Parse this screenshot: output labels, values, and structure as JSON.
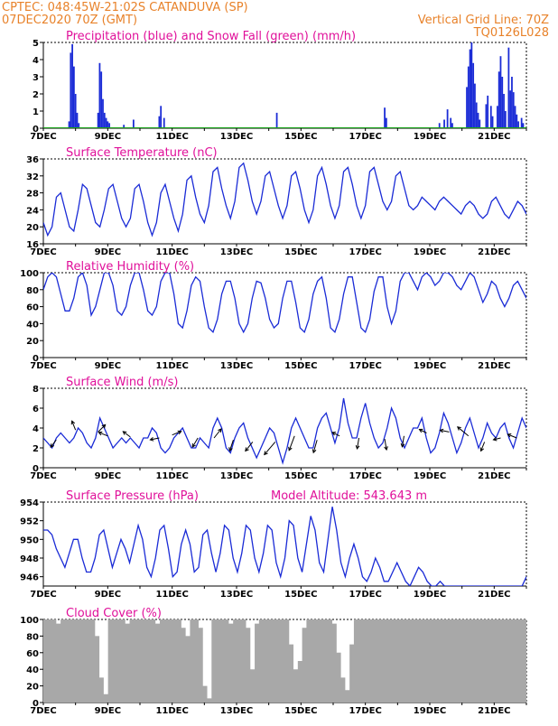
{
  "header": {
    "station": "CPTEC:   048:45W-21:02S   CATANDUVA (SP)",
    "init": "07DEC2020 70Z (GMT)",
    "grid_note": "Vertical Grid Line: 70Z",
    "grid_code": "TQ0126L028"
  },
  "colors": {
    "line": "#1a2bd6",
    "snow": "#17a317",
    "cloud": "#a8a8a8",
    "title": "#e0109a",
    "header": "#e8822a"
  },
  "chart_data": [
    {
      "type": "bar",
      "title": "Precipitation (blue) and Snow Fall (green) (mm/h)",
      "x_labels": [
        "7DEC",
        "9DEC",
        "11DEC",
        "13DEC",
        "15DEC",
        "17DEC",
        "19DEC",
        "21DEC"
      ],
      "x_range": [
        0,
        15
      ],
      "ylim": [
        0,
        5
      ],
      "yticks": [
        0,
        1,
        2,
        3,
        4,
        5
      ],
      "series": [
        {
          "name": "Precipitation",
          "points": [
            [
              0.8,
              0.4
            ],
            [
              0.85,
              4.4
            ],
            [
              0.9,
              4.9
            ],
            [
              0.95,
              3.6
            ],
            [
              1.0,
              2.0
            ],
            [
              1.05,
              0.9
            ],
            [
              1.1,
              0.3
            ],
            [
              1.7,
              0.9
            ],
            [
              1.75,
              3.8
            ],
            [
              1.8,
              3.3
            ],
            [
              1.85,
              1.7
            ],
            [
              1.9,
              0.9
            ],
            [
              1.95,
              0.6
            ],
            [
              2.0,
              0.4
            ],
            [
              2.05,
              0.3
            ],
            [
              2.5,
              0.2
            ],
            [
              2.8,
              0.5
            ],
            [
              3.6,
              0.7
            ],
            [
              3.65,
              1.3
            ],
            [
              3.75,
              0.6
            ],
            [
              7.25,
              0.9
            ],
            [
              10.6,
              1.2
            ],
            [
              10.65,
              0.6
            ],
            [
              12.3,
              0.3
            ],
            [
              12.45,
              0.5
            ],
            [
              12.55,
              1.1
            ],
            [
              12.65,
              0.6
            ],
            [
              12.7,
              0.3
            ],
            [
              13.15,
              2.4
            ],
            [
              13.2,
              3.6
            ],
            [
              13.25,
              4.6
            ],
            [
              13.3,
              5.0
            ],
            [
              13.35,
              3.8
            ],
            [
              13.4,
              2.6
            ],
            [
              13.45,
              1.5
            ],
            [
              13.5,
              0.9
            ],
            [
              13.55,
              0.5
            ],
            [
              13.75,
              1.4
            ],
            [
              13.8,
              1.9
            ],
            [
              13.9,
              1.3
            ],
            [
              13.95,
              0.7
            ],
            [
              14.1,
              1.3
            ],
            [
              14.15,
              3.3
            ],
            [
              14.2,
              4.2
            ],
            [
              14.25,
              3.0
            ],
            [
              14.3,
              2.0
            ],
            [
              14.35,
              1.0
            ],
            [
              14.45,
              4.7
            ],
            [
              14.5,
              2.2
            ],
            [
              14.55,
              3.0
            ],
            [
              14.6,
              2.1
            ],
            [
              14.65,
              1.3
            ],
            [
              14.7,
              0.8
            ],
            [
              14.75,
              0.4
            ],
            [
              14.85,
              0.6
            ],
            [
              14.9,
              0.3
            ]
          ]
        },
        {
          "name": "Snow Fall",
          "points": [
            [
              0,
              0
            ],
            [
              15,
              0
            ]
          ]
        }
      ]
    },
    {
      "type": "line",
      "title": "Surface Temperature (nC)",
      "x_labels": [
        "7DEC",
        "9DEC",
        "11DEC",
        "13DEC",
        "15DEC",
        "17DEC",
        "19DEC",
        "21DEC"
      ],
      "x_range": [
        0,
        15
      ],
      "ylim": [
        16,
        36
      ],
      "yticks": [
        16,
        20,
        24,
        28,
        32,
        36
      ],
      "values": [
        21,
        18,
        20,
        27,
        28,
        24,
        20,
        19,
        24,
        30,
        29,
        25,
        21,
        20,
        24,
        29,
        30,
        26,
        22,
        20,
        22,
        29,
        30,
        26,
        21,
        18,
        21,
        28,
        30,
        26,
        22,
        19,
        23,
        31,
        32,
        27,
        23,
        21,
        25,
        33,
        34,
        29,
        25,
        22,
        26,
        34,
        35,
        31,
        26,
        23,
        26,
        32,
        33,
        29,
        25,
        22,
        25,
        32,
        33,
        29,
        24,
        21,
        24,
        32,
        34,
        30,
        25,
        22,
        25,
        33,
        34,
        30,
        25,
        22,
        25,
        33,
        34,
        30,
        26,
        24,
        26,
        32,
        33,
        29,
        25,
        24,
        25,
        27,
        26,
        25,
        24,
        26,
        27,
        26,
        25,
        24,
        23,
        25,
        26,
        25,
        23,
        22,
        23,
        26,
        27,
        25,
        23,
        22,
        24,
        26,
        25,
        23
      ]
    },
    {
      "type": "line",
      "title": "Relative Humidity (%)",
      "x_labels": [
        "7DEC",
        "9DEC",
        "11DEC",
        "13DEC",
        "15DEC",
        "17DEC",
        "19DEC",
        "21DEC"
      ],
      "x_range": [
        0,
        15
      ],
      "ylim": [
        0,
        100
      ],
      "yticks": [
        0,
        20,
        40,
        60,
        80,
        100
      ],
      "values": [
        80,
        95,
        100,
        95,
        75,
        55,
        55,
        70,
        95,
        100,
        85,
        50,
        60,
        80,
        100,
        100,
        85,
        55,
        50,
        60,
        85,
        100,
        100,
        80,
        55,
        50,
        60,
        90,
        100,
        100,
        75,
        40,
        35,
        55,
        85,
        95,
        90,
        60,
        35,
        30,
        45,
        75,
        90,
        90,
        70,
        40,
        30,
        40,
        70,
        90,
        88,
        70,
        45,
        35,
        40,
        70,
        90,
        90,
        65,
        35,
        30,
        45,
        75,
        90,
        95,
        70,
        35,
        30,
        45,
        75,
        95,
        95,
        65,
        35,
        30,
        45,
        78,
        95,
        95,
        60,
        40,
        55,
        90,
        100,
        100,
        90,
        80,
        95,
        100,
        95,
        85,
        90,
        100,
        100,
        95,
        85,
        80,
        90,
        100,
        95,
        80,
        65,
        75,
        90,
        85,
        70,
        60,
        70,
        85,
        90,
        80,
        70
      ]
    },
    {
      "type": "line",
      "title": "Surface Wind (m/s)",
      "x_labels": [
        "7DEC",
        "9DEC",
        "11DEC",
        "13DEC",
        "15DEC",
        "17DEC",
        "19DEC",
        "21DEC"
      ],
      "x_range": [
        0,
        15
      ],
      "ylim": [
        0,
        8
      ],
      "yticks": [
        0,
        2,
        4,
        6,
        8
      ],
      "values": [
        3,
        2.5,
        2,
        3,
        3.5,
        3,
        2.5,
        3,
        4,
        3.5,
        2.5,
        2,
        3,
        5,
        4,
        3,
        2,
        2.5,
        3,
        2.5,
        3,
        2.5,
        2,
        3,
        3,
        4,
        3.5,
        2,
        1.5,
        2,
        3,
        3.5,
        4,
        3,
        2,
        2,
        3,
        2.5,
        2,
        4,
        5,
        4,
        2,
        1.5,
        3,
        4,
        4.5,
        3,
        2,
        1,
        2,
        3,
        4,
        3.5,
        2,
        0.5,
        2,
        4,
        5,
        4,
        3,
        2,
        2,
        4,
        5,
        5.5,
        4,
        2.5,
        4,
        7,
        4.5,
        3,
        3,
        5,
        6.5,
        4.5,
        3,
        2,
        2.5,
        4,
        6,
        5,
        3,
        2,
        3,
        4,
        4,
        5,
        3,
        1.5,
        2,
        3.5,
        5.5,
        4.5,
        3,
        1.5,
        2.5,
        4,
        5,
        3.5,
        2,
        3,
        4.5,
        3.5,
        3,
        4,
        4.5,
        3,
        2,
        3.5,
        5,
        4
      ]
    },
    {
      "type": "line",
      "title": "Surface Pressure (hPa)",
      "annotation": "Model Altitude: 543.643  m",
      "x_labels": [
        "7DEC",
        "9DEC",
        "11DEC",
        "13DEC",
        "15DEC",
        "17DEC",
        "19DEC",
        "21DEC"
      ],
      "x_range": [
        0,
        15
      ],
      "ylim": [
        945,
        954
      ],
      "yticks": [
        946,
        948,
        950,
        952,
        954
      ],
      "values": [
        951,
        951,
        950.5,
        949,
        948,
        947,
        948.5,
        950,
        950,
        948,
        946.5,
        946.5,
        948,
        950.5,
        951,
        949,
        947,
        948.5,
        950,
        949,
        947.5,
        949.5,
        951.5,
        950,
        947,
        946,
        948,
        951,
        951.5,
        949,
        946,
        946.5,
        949.5,
        951,
        949.5,
        946.5,
        947,
        950.5,
        951,
        948.5,
        946.5,
        948.5,
        951.5,
        951,
        948,
        946.5,
        948.5,
        951.5,
        951,
        948,
        946.5,
        948.5,
        951.5,
        951,
        947.5,
        946,
        948,
        952,
        951.5,
        948,
        946.5,
        949.5,
        952.5,
        951,
        947.5,
        946.5,
        950,
        953.5,
        951,
        947.5,
        946,
        948,
        949.5,
        948,
        946,
        945.5,
        946.5,
        948,
        947,
        945.5,
        945.5,
        946.5,
        947.5,
        946.5,
        945.5,
        945,
        946,
        947,
        946.5,
        945.5,
        945,
        945,
        945.5,
        945,
        945,
        945,
        945,
        945,
        945,
        945,
        945,
        945,
        945,
        945,
        945,
        945,
        945,
        945,
        945,
        945,
        945,
        945,
        946
      ]
    },
    {
      "type": "area",
      "title": "Cloud Cover (%)",
      "x_labels": [
        "7DEC",
        "9DEC",
        "11DEC",
        "13DEC",
        "15DEC",
        "17DEC",
        "19DEC",
        "21DEC"
      ],
      "x_range": [
        0,
        15
      ],
      "ylim": [
        0,
        100
      ],
      "yticks": [
        0,
        20,
        40,
        60,
        80,
        100
      ],
      "values": [
        100,
        100,
        100,
        95,
        100,
        100,
        100,
        100,
        100,
        100,
        100,
        100,
        80,
        30,
        10,
        100,
        100,
        100,
        100,
        95,
        100,
        100,
        100,
        100,
        100,
        100,
        95,
        100,
        100,
        100,
        100,
        100,
        90,
        80,
        100,
        100,
        90,
        20,
        5,
        100,
        100,
        100,
        100,
        95,
        100,
        100,
        100,
        90,
        40,
        95,
        100,
        100,
        100,
        100,
        100,
        100,
        100,
        70,
        40,
        50,
        90,
        100,
        100,
        100,
        100,
        100,
        100,
        95,
        60,
        30,
        15,
        70,
        100,
        100,
        100,
        100,
        100,
        100,
        100,
        100,
        100,
        100,
        100,
        100,
        100,
        100,
        100,
        100,
        100,
        100,
        100,
        100,
        100,
        100,
        100,
        100,
        100,
        100,
        100,
        100,
        100,
        100,
        100,
        100,
        100,
        100,
        100,
        100,
        100,
        100,
        100,
        100
      ]
    }
  ],
  "wind_vectors": [
    {
      "x": 0.4,
      "y": 2.8,
      "dx": -6,
      "dy": 8
    },
    {
      "x": 1.0,
      "y": 3.8,
      "dx": -4,
      "dy": -10
    },
    {
      "x": 1.7,
      "y": 3.6,
      "dx": 8,
      "dy": -8
    },
    {
      "x": 2.0,
      "y": 3.2,
      "dx": -10,
      "dy": -4
    },
    {
      "x": 2.7,
      "y": 3.1,
      "dx": -8,
      "dy": -6
    },
    {
      "x": 3.6,
      "y": 3.0,
      "dx": -10,
      "dy": 2
    },
    {
      "x": 4.0,
      "y": 3.3,
      "dx": 10,
      "dy": -4
    },
    {
      "x": 4.8,
      "y": 3.0,
      "dx": -6,
      "dy": 10
    },
    {
      "x": 5.3,
      "y": 3.0,
      "dx": 8,
      "dy": -10
    },
    {
      "x": 5.9,
      "y": 2.8,
      "dx": -4,
      "dy": 12
    },
    {
      "x": 6.5,
      "y": 2.6,
      "dx": -8,
      "dy": 10
    },
    {
      "x": 7.2,
      "y": 2.6,
      "dx": -12,
      "dy": 14
    },
    {
      "x": 7.8,
      "y": 3.2,
      "dx": -6,
      "dy": 16
    },
    {
      "x": 8.5,
      "y": 2.8,
      "dx": -4,
      "dy": 14
    },
    {
      "x": 9.2,
      "y": 3.2,
      "dx": -8,
      "dy": -4
    },
    {
      "x": 9.8,
      "y": 3.0,
      "dx": -2,
      "dy": 12
    },
    {
      "x": 10.6,
      "y": 2.9,
      "dx": 2,
      "dy": 12
    },
    {
      "x": 11.2,
      "y": 3.2,
      "dx": -2,
      "dy": 12
    },
    {
      "x": 11.9,
      "y": 3.5,
      "dx": -8,
      "dy": -4
    },
    {
      "x": 12.6,
      "y": 3.6,
      "dx": -10,
      "dy": -2
    },
    {
      "x": 13.2,
      "y": 3.2,
      "dx": -12,
      "dy": -10
    },
    {
      "x": 13.7,
      "y": 2.6,
      "dx": -4,
      "dy": 10
    },
    {
      "x": 14.2,
      "y": 3.0,
      "dx": -8,
      "dy": 2
    },
    {
      "x": 14.7,
      "y": 3.0,
      "dx": -10,
      "dy": -4
    }
  ]
}
